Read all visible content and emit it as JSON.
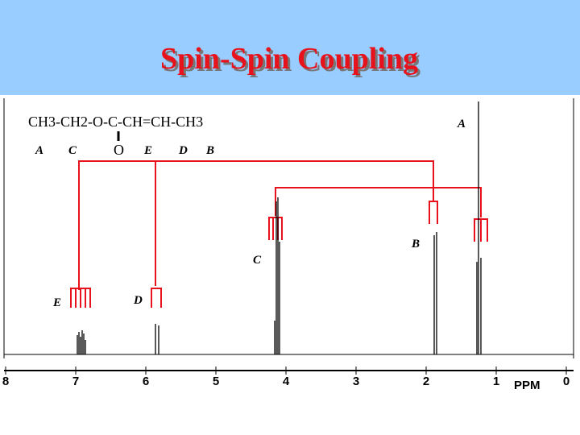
{
  "header": {
    "title": "Spin-Spin Coupling"
  },
  "molecule": {
    "formula": "CH3-CH2-O-C-CH=CH-CH3",
    "carbonyl": "O",
    "groups": [
      "A",
      "C",
      "E",
      "D",
      "B"
    ]
  },
  "peaks": {
    "labels": [
      "A",
      "B",
      "C",
      "E",
      "D"
    ]
  },
  "axis": {
    "ticks": [
      "8",
      "7",
      "6",
      "5",
      "4",
      "3",
      "2",
      "1",
      "0"
    ],
    "unit": "PPM"
  }
}
